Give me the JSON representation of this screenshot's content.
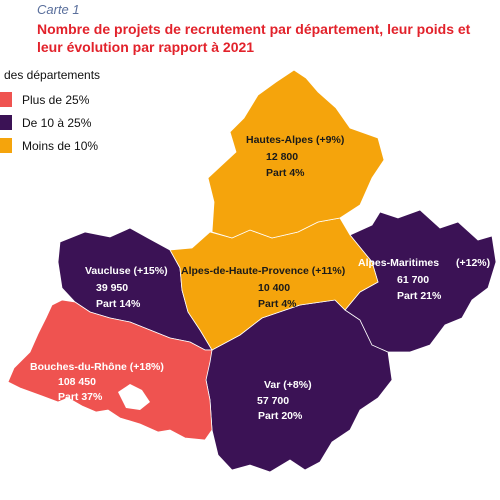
{
  "caption": "Carte 1",
  "title": "Nombre de projets de recrutement par département, leur poids et leur évolution par rapport à 2021",
  "legend": {
    "title": "des départements",
    "items": [
      {
        "label": "Plus de 25%",
        "color": "#ef5350"
      },
      {
        "label": "De 10 à 25%",
        "color": "#3b1255"
      },
      {
        "label": "Moins de 10%",
        "color": "#f5a40c"
      }
    ]
  },
  "departments": {
    "hautes_alpes": {
      "name": "Hautes-Alpes (+9%)",
      "count": "12 800",
      "share": "Part 4%",
      "color": "#f5a40c"
    },
    "alpes_hp": {
      "name": "Alpes-de-Haute-Provence (+11%)",
      "count": "10 400",
      "share": "Part 4%",
      "color": "#f5a40c"
    },
    "vaucluse": {
      "name": "Vaucluse (+15%)",
      "count": "39 950",
      "share": "Part 14%",
      "color": "#3b1255"
    },
    "alpes_maritimes": {
      "name": "Alpes-Maritimes",
      "evolution": "(+12%)",
      "count": "61 700",
      "share": "Part 21%",
      "color": "#3b1255"
    },
    "bouches_du_rhone": {
      "name": "Bouches-du-Rhône (+18%)",
      "count": "108 450",
      "share": "Part 37%",
      "color": "#ef5350"
    },
    "var": {
      "name": "Var (+8%)",
      "count": "57 700",
      "share": "Part 20%",
      "color": "#3b1255"
    }
  }
}
